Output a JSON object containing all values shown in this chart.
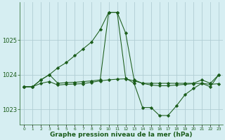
{
  "background_color": "#d6eef2",
  "grid_color": "#b0cdd4",
  "line_color": "#1a5c1a",
  "marker_color": "#1a5c1a",
  "xlabel": "Graphe pression niveau de la mer (hPa)",
  "xlabel_fontsize": 6.5,
  "xlim": [
    -0.5,
    23.5
  ],
  "ylim": [
    1022.55,
    1026.1
  ],
  "yticks": [
    1023,
    1024,
    1025
  ],
  "ytick_fontsize": 6,
  "xtick_fontsize": 4.2,
  "xticks": [
    0,
    1,
    2,
    3,
    4,
    5,
    6,
    7,
    8,
    9,
    10,
    11,
    12,
    13,
    14,
    15,
    16,
    17,
    18,
    19,
    20,
    21,
    22,
    23
  ],
  "series": [
    {
      "x": [
        0,
        1,
        2,
        3,
        4,
        5,
        6,
        7,
        8,
        9,
        10,
        11,
        12,
        13,
        14,
        15,
        16,
        17,
        18,
        19,
        20,
        21,
        22,
        23
      ],
      "y": [
        1023.65,
        1023.65,
        1023.85,
        1024.0,
        1024.2,
        1024.35,
        1024.55,
        1024.75,
        1024.95,
        1025.3,
        1025.8,
        1025.8,
        1025.2,
        1023.85,
        1023.75,
        1023.75,
        1023.75,
        1023.75,
        1023.75,
        1023.75,
        1023.75,
        1023.85,
        1023.75,
        1024.0
      ]
    },
    {
      "x": [
        0,
        1,
        2,
        3,
        4,
        5,
        6,
        7,
        8,
        9,
        10,
        11,
        12,
        13,
        14,
        15,
        16,
        17,
        18,
        19,
        20,
        21,
        22,
        23
      ],
      "y": [
        1023.65,
        1023.65,
        1023.75,
        1023.8,
        1023.7,
        1023.72,
        1023.73,
        1023.74,
        1023.78,
        1023.82,
        1023.85,
        1023.87,
        1023.88,
        1023.82,
        1023.75,
        1023.7,
        1023.68,
        1023.68,
        1023.7,
        1023.72,
        1023.74,
        1023.75,
        1023.72,
        1023.74
      ]
    },
    {
      "x": [
        0,
        1,
        2,
        3,
        4,
        5,
        6,
        7,
        8,
        9,
        10,
        11,
        12,
        13,
        14,
        15,
        16,
        17,
        18,
        19,
        20,
        21,
        22,
        23
      ],
      "y": [
        1023.65,
        1023.65,
        1023.85,
        1024.0,
        1023.75,
        1023.77,
        1023.78,
        1023.8,
        1023.82,
        1023.85,
        1025.8,
        1025.8,
        1023.9,
        1023.75,
        1023.05,
        1023.05,
        1022.82,
        1022.82,
        1023.1,
        1023.42,
        1023.6,
        1023.75,
        1023.65,
        1024.0
      ]
    }
  ]
}
